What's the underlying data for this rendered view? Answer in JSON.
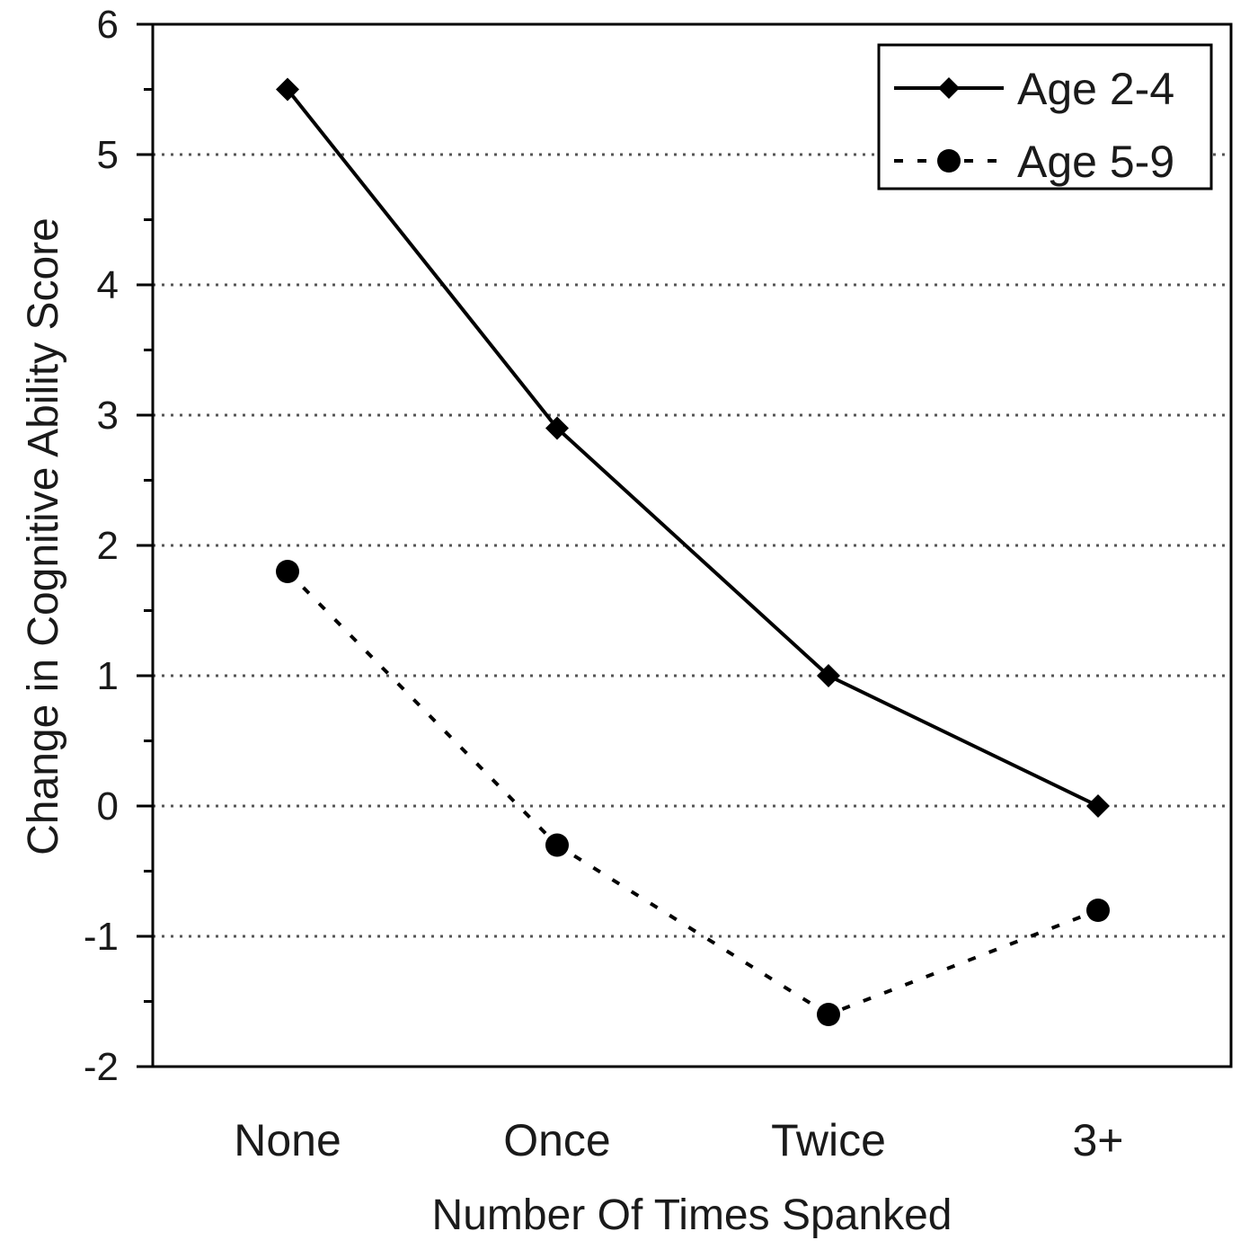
{
  "chart_data": {
    "type": "line",
    "categories": [
      "None",
      "Once",
      "Twice",
      "3+"
    ],
    "series": [
      {
        "name": "Age 2-4",
        "values": [
          5.5,
          2.9,
          1.0,
          0.0
        ],
        "marker": "diamond",
        "line_style": "solid"
      },
      {
        "name": "Age 5-9",
        "values": [
          1.8,
          -0.3,
          -1.6,
          -0.8
        ],
        "marker": "circle",
        "line_style": "dotted"
      }
    ],
    "xlabel": "Number Of Times Spanked",
    "ylabel": "Change in Cognitive Ability Score",
    "ylim": [
      -2,
      6
    ],
    "yticks": [
      "-2",
      "-1",
      "0",
      "1",
      "2",
      "3",
      "4",
      "5",
      "6"
    ],
    "grid": "horizontal dotted",
    "legend_position": "top-right",
    "colors": {
      "line": "#000000",
      "grid": "#555555",
      "text": "#1a1a1a"
    }
  }
}
